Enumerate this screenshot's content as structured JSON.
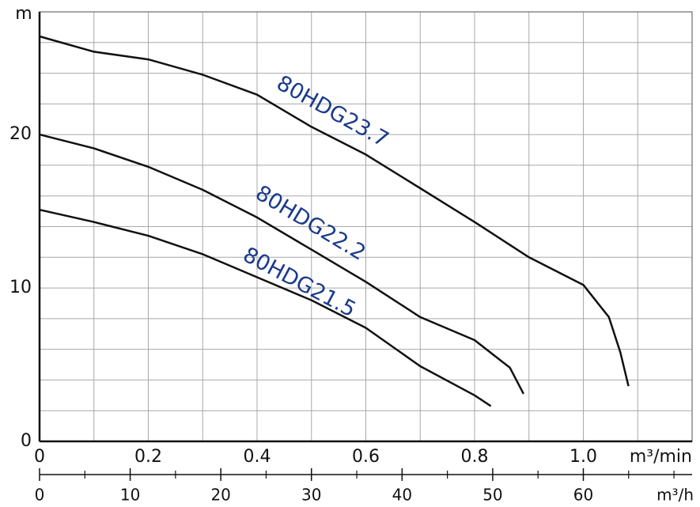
{
  "chart_data": {
    "type": "line",
    "y_label": "m",
    "x_label": "m³/min",
    "x2_label": "m³/h",
    "xlim": [
      0,
      1.2
    ],
    "ylim": [
      0,
      28
    ],
    "x2lim": [
      0,
      72
    ],
    "xticks": [
      0,
      0.2,
      0.4,
      0.6,
      0.8,
      {
        "value": 1,
        "label": "1.0"
      }
    ],
    "yticks": [
      0,
      10,
      20
    ],
    "x2ticks": [
      0,
      10,
      20,
      30,
      40,
      50,
      60
    ],
    "x2minor": [
      5,
      15,
      25,
      35,
      45,
      55,
      65,
      70
    ],
    "xgrid": [
      0.1,
      0.2,
      0.3,
      0.4,
      0.5,
      0.6,
      0.7,
      0.8,
      0.9,
      1.0,
      1.1
    ],
    "ygrid": [
      2,
      4,
      6,
      8,
      10,
      12,
      14,
      16,
      18,
      20,
      22,
      24,
      26
    ],
    "series": [
      {
        "name": "80HDG23.7",
        "color": "#111111",
        "x": [
          0,
          0.1,
          0.2,
          0.3,
          0.4,
          0.5,
          0.6,
          0.7,
          0.8,
          0.9,
          1.0,
          1.047,
          1.068,
          1.083
        ],
        "values": [
          26.4,
          25.4,
          24.9,
          23.9,
          22.6,
          20.5,
          18.7,
          16.5,
          14.3,
          12.0,
          10.2,
          8.1,
          5.8,
          3.6
        ]
      },
      {
        "name": "80HDG22.2",
        "color": "#111111",
        "x": [
          0,
          0.1,
          0.2,
          0.3,
          0.4,
          0.5,
          0.6,
          0.7,
          0.8,
          0.865,
          0.89
        ],
        "values": [
          20.0,
          19.1,
          17.9,
          16.4,
          14.6,
          12.5,
          10.4,
          8.1,
          6.6,
          4.8,
          3.1
        ]
      },
      {
        "name": "80HDG21.5",
        "color": "#111111",
        "x": [
          0,
          0.1,
          0.2,
          0.3,
          0.4,
          0.5,
          0.6,
          0.7,
          0.8,
          0.83
        ],
        "values": [
          15.1,
          14.3,
          13.4,
          12.2,
          10.7,
          9.2,
          7.4,
          4.9,
          3.0,
          2.3
        ]
      }
    ]
  }
}
